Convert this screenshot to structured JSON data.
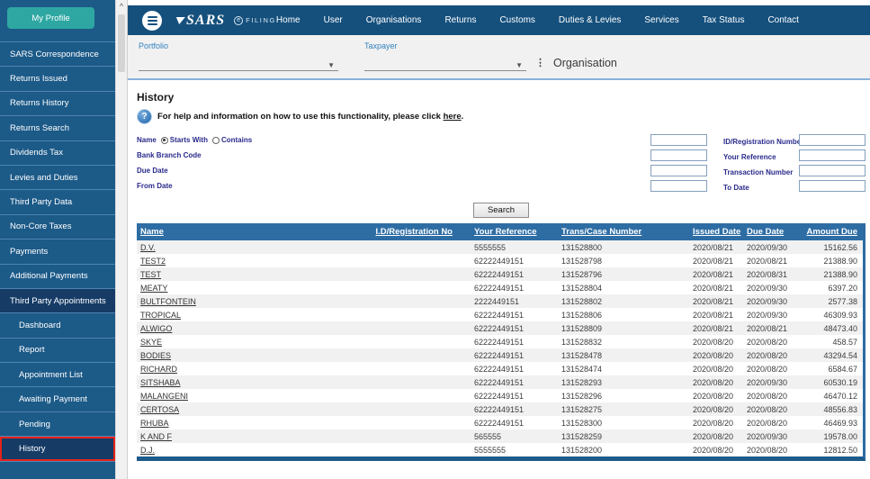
{
  "sidebar": {
    "profile_button": "My Profile",
    "items": [
      "SARS Correspondence",
      "Returns Issued",
      "Returns History",
      "Returns Search",
      "Dividends Tax",
      "Levies and Duties",
      "Third Party Data",
      "Non-Core Taxes",
      "Payments",
      "Additional Payments"
    ],
    "section": "Third Party Appointments",
    "sub_items": [
      "Dashboard",
      "Report",
      "Appointment List",
      "Awaiting Payment",
      "Pending"
    ],
    "active_item": "History"
  },
  "header": {
    "brand": {
      "sars": "SARS",
      "e": "e",
      "filing": "FILING"
    },
    "nav": [
      "Home",
      "User",
      "Organisations",
      "Returns",
      "Customs",
      "Duties & Levies",
      "Services",
      "Tax Status",
      "Contact"
    ]
  },
  "portfolio_bar": {
    "portfolio_label": "Portfolio",
    "taxpayer_label": "Taxpayer",
    "org_label": "Organisation"
  },
  "content": {
    "title": "History",
    "help_text_before": "For help and information on how to use this functionality, please click ",
    "help_link": "here",
    "help_text_after": ".",
    "filters": {
      "name_label": "Name",
      "radio_starts": "Starts With",
      "radio_contains": "Contains",
      "rows": [
        {
          "left_label": "Name",
          "right_label": "ID/Registration Number"
        },
        {
          "left_label": "Bank Branch Code",
          "right_label": "Your Reference"
        },
        {
          "left_label": "Due Date",
          "right_label": "Transaction Number"
        },
        {
          "left_label": "From Date",
          "right_label": "To Date"
        }
      ]
    },
    "search_button": "Search"
  },
  "table": {
    "headers": [
      "Name",
      "I.D/Registration No",
      "Your Reference",
      "Trans/Case Number",
      "Issued Date",
      "Due Date",
      "Amount Due"
    ],
    "rows": [
      [
        "D.V.",
        "",
        "5555555",
        "131528800",
        "2020/08/21",
        "2020/09/30",
        "15162.56"
      ],
      [
        "TEST2",
        "",
        "62222449151",
        "131528798",
        "2020/08/21",
        "2020/08/21",
        "21388.90"
      ],
      [
        "TEST",
        "",
        "62222449151",
        "131528796",
        "2020/08/21",
        "2020/08/31",
        "21388.90"
      ],
      [
        "MEATY",
        "",
        "62222449151",
        "131528804",
        "2020/08/21",
        "2020/09/30",
        "6397.20"
      ],
      [
        "BULTFONTEIN",
        "",
        "2222449151",
        "131528802",
        "2020/08/21",
        "2020/09/30",
        "2577.38"
      ],
      [
        "TROPICAL",
        "",
        "62222449151",
        "131528806",
        "2020/08/21",
        "2020/09/30",
        "46309.93"
      ],
      [
        "ALWIGO",
        "",
        "62222449151",
        "131528809",
        "2020/08/21",
        "2020/08/21",
        "48473.40"
      ],
      [
        "SKYE",
        "",
        "62222449151",
        "131528832",
        "2020/08/20",
        "2020/08/20",
        "458.57"
      ],
      [
        "BODIES",
        "",
        "62222449151",
        "131528478",
        "2020/08/20",
        "2020/08/20",
        "43294.54"
      ],
      [
        "RICHARD",
        "",
        "62222449151",
        "131528474",
        "2020/08/20",
        "2020/08/20",
        "6584.67"
      ],
      [
        "SITSHABA",
        "",
        "62222449151",
        "131528293",
        "2020/08/20",
        "2020/09/30",
        "60530.19"
      ],
      [
        "MALANGENI",
        "",
        "62222449151",
        "131528296",
        "2020/08/20",
        "2020/08/20",
        "46470.12"
      ],
      [
        "CERTOSA",
        "",
        "62222449151",
        "131528275",
        "2020/08/20",
        "2020/08/20",
        "48556.83"
      ],
      [
        "RHUBA",
        "",
        "62222449151",
        "131528300",
        "2020/08/20",
        "2020/08/20",
        "46469.93"
      ],
      [
        "K AND F",
        "",
        "565555",
        "131528259",
        "2020/08/20",
        "2020/09/30",
        "19578.00"
      ],
      [
        "D.J.",
        "",
        "5555555",
        "131528200",
        "2020/08/20",
        "2020/08/20",
        "12812.50"
      ]
    ]
  },
  "colors": {
    "sidebar_bg": "#1c5a88",
    "sidebar_dark": "#163c66",
    "navbar_bg": "#15507d",
    "table_header_bg": "#2e6da4",
    "profile_teal": "#2ea7a2",
    "highlight_red": "#e5231b",
    "row_stripe": "#f1f1f1",
    "label_navy": "#2a2a8c",
    "link_blue": "#3383c0"
  }
}
